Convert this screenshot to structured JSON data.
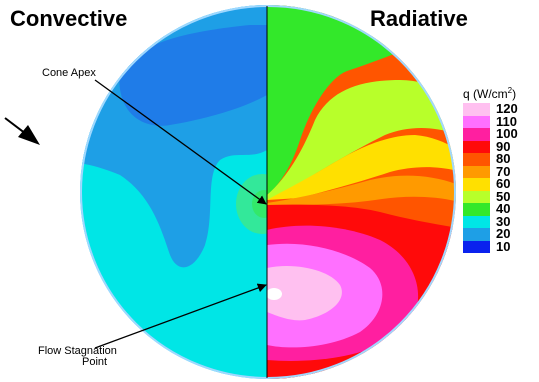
{
  "titles": {
    "left": "Convective",
    "right": "Radiative"
  },
  "annotations": {
    "cone_apex": "Cone Apex",
    "stagnation_line1": "Flow Stagnation",
    "stagnation_line2": "Point"
  },
  "legend": {
    "title": "q (W/cm",
    "title_sup": "2",
    "title_end": ")",
    "entries": [
      {
        "label": "120",
        "color": "#ffc0f0"
      },
      {
        "label": "110",
        "color": "#ff70ff"
      },
      {
        "label": "100",
        "color": "#ff1fa0"
      },
      {
        "label": "90",
        "color": "#ff0a0a"
      },
      {
        "label": "80",
        "color": "#ff5500"
      },
      {
        "label": "70",
        "color": "#ff9a00"
      },
      {
        "label": "60",
        "color": "#ffe000"
      },
      {
        "label": "50",
        "color": "#b8ff2a"
      },
      {
        "label": "40",
        "color": "#33e82a"
      },
      {
        "label": "30",
        "color": "#00e6e6"
      },
      {
        "label": "20",
        "color": "#1e9fe6"
      },
      {
        "label": "10",
        "color": "#0a22ee"
      }
    ]
  }
}
